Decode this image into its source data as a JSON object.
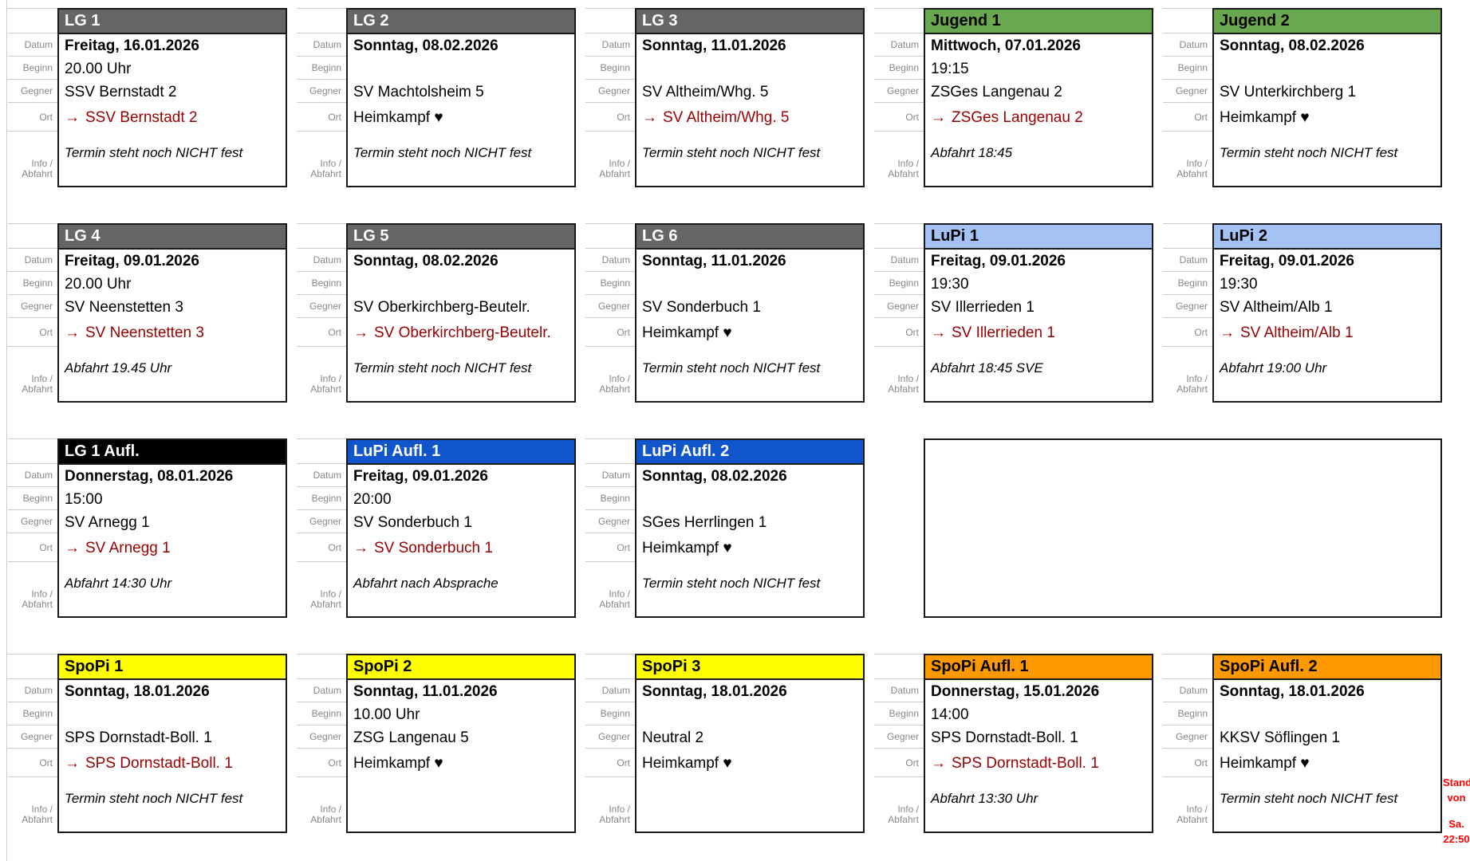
{
  "field_labels": {
    "datum": "Datum",
    "beginn": "Beginn",
    "gegner": "Gegner",
    "ort": "Ort",
    "info_line1": "Info /",
    "info_line2": "Abfahrt"
  },
  "icons": {
    "arrow": "→",
    "heart": "♥"
  },
  "colors": {
    "card_border": "#1a1a1a",
    "label_text": "#888888",
    "away_link": "#990000",
    "grid_line": "#cccccc",
    "header_gray": "#666666",
    "header_green": "#6aa84f",
    "header_lightblue": "#a4c2f4",
    "header_black": "#000000",
    "header_blue": "#1155cc",
    "header_yellow": "#ffff00",
    "header_orange": "#ff9900",
    "stand_note_red": "#ff0000"
  },
  "stand_note": {
    "line1": "Stand",
    "line2": "von",
    "line3": "Sa.",
    "line4": "22:50"
  },
  "cards": [
    {
      "title": "LG 1",
      "header_bg": "#666666",
      "header_fg": "#ffffff",
      "datum": "Freitag, 16.01.2026",
      "beginn": "20.00 Uhr",
      "gegner": "SSV Bernstadt 2",
      "ort_type": "away",
      "ort": "SSV Bernstadt 2",
      "info": "Termin steht noch NICHT fest"
    },
    {
      "title": "LG 2",
      "header_bg": "#666666",
      "header_fg": "#ffffff",
      "datum": "Sonntag, 08.02.2026",
      "beginn": "",
      "gegner": "SV Machtolsheim 5",
      "ort_type": "home",
      "ort": "Heimkampf ♥",
      "info": "Termin steht noch NICHT fest"
    },
    {
      "title": "LG 3",
      "header_bg": "#666666",
      "header_fg": "#ffffff",
      "datum": "Sonntag, 11.01.2026",
      "beginn": "",
      "gegner": "SV Altheim/Whg. 5",
      "ort_type": "away",
      "ort": "SV Altheim/Whg. 5",
      "info": "Termin steht noch NICHT fest"
    },
    {
      "title": "Jugend 1",
      "header_bg": "#6aa84f",
      "header_fg": "#000000",
      "datum": "Mittwoch, 07.01.2026",
      "beginn": "19:15",
      "gegner": "ZSGes Langenau 2",
      "ort_type": "away",
      "ort": "ZSGes Langenau 2",
      "info": "Abfahrt 18:45"
    },
    {
      "title": "Jugend 2",
      "header_bg": "#6aa84f",
      "header_fg": "#000000",
      "datum": "Sonntag, 08.02.2026",
      "beginn": "",
      "gegner": "SV Unterkirchberg 1",
      "ort_type": "home",
      "ort": "Heimkampf ♥",
      "info": "Termin steht noch NICHT fest"
    },
    {
      "title": "LG 4",
      "header_bg": "#666666",
      "header_fg": "#ffffff",
      "datum": "Freitag, 09.01.2026",
      "beginn": "20.00 Uhr",
      "gegner": "SV Neenstetten 3",
      "ort_type": "away",
      "ort": "SV Neenstetten 3",
      "info": "Abfahrt 19.45 Uhr"
    },
    {
      "title": "LG 5",
      "header_bg": "#666666",
      "header_fg": "#ffffff",
      "datum": "Sonntag, 08.02.2026",
      "beginn": "",
      "gegner": "SV Oberkirchberg-Beutelr.",
      "ort_type": "away",
      "ort": "SV Oberkirchberg-Beutelr.",
      "info": "Termin steht noch NICHT fest"
    },
    {
      "title": "LG 6",
      "header_bg": "#666666",
      "header_fg": "#ffffff",
      "datum": "Sonntag, 11.01.2026",
      "beginn": "",
      "gegner": "SV Sonderbuch 1",
      "ort_type": "home",
      "ort": "Heimkampf ♥",
      "info": "Termin steht noch NICHT fest"
    },
    {
      "title": "LuPi 1",
      "header_bg": "#a4c2f4",
      "header_fg": "#000000",
      "datum": "Freitag, 09.01.2026",
      "beginn": "19:30",
      "gegner": "SV Illerrieden 1",
      "ort_type": "away",
      "ort": "SV Illerrieden 1",
      "info": "Abfahrt 18:45 SVE"
    },
    {
      "title": "LuPi 2",
      "header_bg": "#a4c2f4",
      "header_fg": "#000000",
      "datum": "Freitag, 09.01.2026",
      "beginn": "19:30",
      "gegner": "SV Altheim/Alb 1",
      "ort_type": "away",
      "ort": "SV Altheim/Alb 1",
      "info": "Abfahrt 19:00 Uhr"
    },
    {
      "title": "LG 1 Aufl.",
      "header_bg": "#000000",
      "header_fg": "#ffffff",
      "datum": "Donnerstag, 08.01.2026",
      "beginn": "15:00",
      "gegner": "SV Arnegg 1",
      "ort_type": "away",
      "ort": "SV Arnegg 1",
      "info": "Abfahrt 14:30 Uhr"
    },
    {
      "title": "LuPi Aufl. 1",
      "header_bg": "#1155cc",
      "header_fg": "#ffffff",
      "datum": "Freitag, 09.01.2026",
      "beginn": "20:00",
      "gegner": "SV Sonderbuch 1",
      "ort_type": "away",
      "ort": "SV Sonderbuch 1",
      "info": "Abfahrt nach Absprache"
    },
    {
      "title": "LuPi Aufl. 2",
      "header_bg": "#1155cc",
      "header_fg": "#ffffff",
      "datum": "Sonntag, 08.02.2026",
      "beginn": "",
      "gegner": "SGes Herrlingen 1",
      "ort_type": "home",
      "ort": "Heimkampf ♥",
      "info": "Termin steht noch NICHT fest"
    },
    {
      "type": "empty"
    },
    {
      "title": "SpoPi 1",
      "header_bg": "#ffff00",
      "header_fg": "#000000",
      "datum": "Sonntag, 18.01.2026",
      "beginn": "",
      "gegner": "SPS Dornstadt-Boll. 1",
      "ort_type": "away",
      "ort": "SPS Dornstadt-Boll. 1",
      "info": "Termin steht noch NICHT fest"
    },
    {
      "title": "SpoPi 2",
      "header_bg": "#ffff00",
      "header_fg": "#000000",
      "datum": "Sonntag, 11.01.2026",
      "beginn": "10.00 Uhr",
      "gegner": "ZSG Langenau 5",
      "ort_type": "home",
      "ort": "Heimkampf ♥",
      "info": ""
    },
    {
      "title": "SpoPi 3",
      "header_bg": "#ffff00",
      "header_fg": "#000000",
      "datum": "Sonntag, 18.01.2026",
      "beginn": "",
      "gegner": "Neutral 2",
      "ort_type": "home",
      "ort": "Heimkampf ♥",
      "info": ""
    },
    {
      "title": "SpoPi Aufl. 1",
      "header_bg": "#ff9900",
      "header_fg": "#000000",
      "datum": "Donnerstag, 15.01.2026",
      "beginn": "14:00",
      "gegner": "SPS Dornstadt-Boll. 1",
      "ort_type": "away",
      "ort": "SPS Dornstadt-Boll. 1",
      "info": "Abfahrt 13:30 Uhr"
    },
    {
      "title": "SpoPi Aufl. 2",
      "header_bg": "#ff9900",
      "header_fg": "#000000",
      "datum": "Sonntag, 18.01.2026",
      "beginn": "",
      "gegner": "KKSV Söflingen 1",
      "ort_type": "home",
      "ort": "Heimkampf ♥",
      "info": "Termin steht noch NICHT fest"
    }
  ]
}
